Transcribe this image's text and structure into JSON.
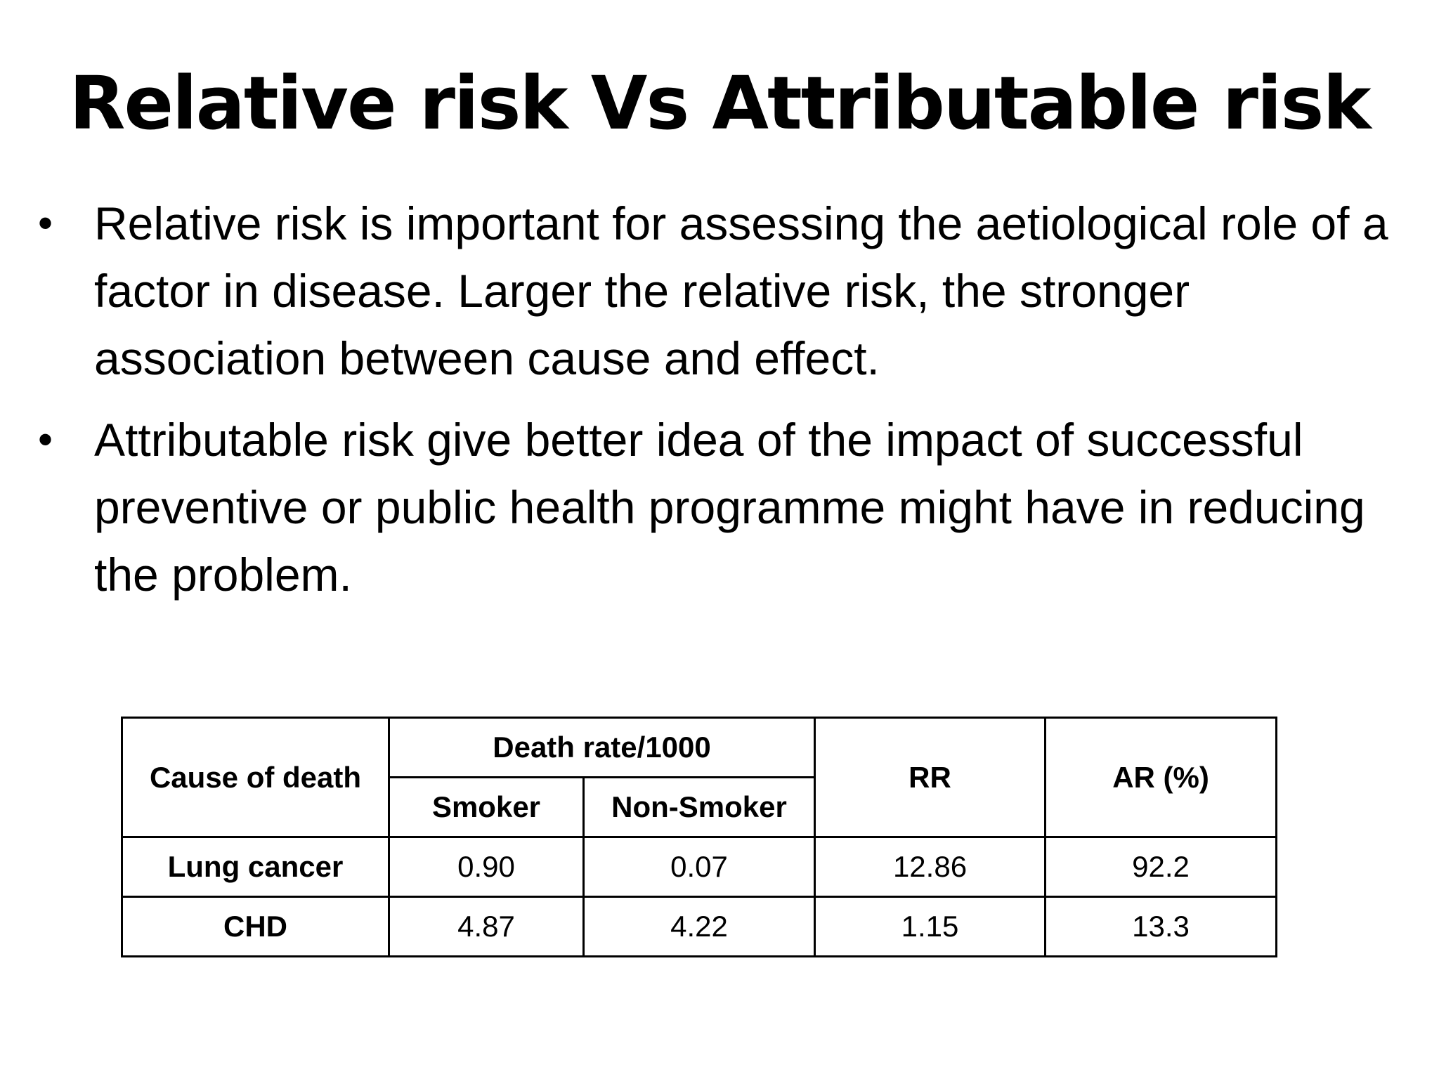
{
  "title": "Relative risk Vs Attributable risk",
  "bullets": [
    {
      "symbol": "•",
      "text": "Relative risk is important for assessing the aetiological role of a factor in disease. Larger the relative risk, the stronger association between cause and effect."
    },
    {
      "symbol": "•",
      "text": "Attributable risk give better idea of the impact of successful preventive or public health programme might have in reducing the problem."
    }
  ],
  "table": {
    "headers": {
      "cause": "Cause of death",
      "death_rate_group": "Death rate/1000",
      "smoker": "Smoker",
      "non_smoker": "Non-Smoker",
      "rr": "RR",
      "ar": "AR (%)"
    },
    "rows": [
      {
        "cause": "Lung cancer",
        "smoker": "0.90",
        "non_smoker": "0.07",
        "rr": "12.86",
        "ar": "92.2"
      },
      {
        "cause": "CHD",
        "smoker": "4.87",
        "non_smoker": "4.22",
        "rr": "1.15",
        "ar": "13.3"
      }
    ]
  }
}
